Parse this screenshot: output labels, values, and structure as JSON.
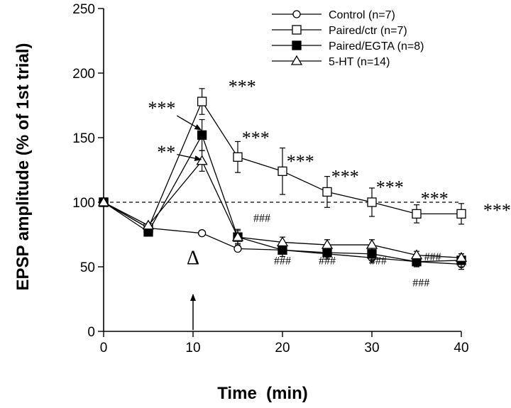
{
  "chart_data": {
    "type": "line",
    "title": "",
    "xlabel": "Time  (min)",
    "ylabel": "EPSP amplitude (% of 1st trial)",
    "xlim": [
      0,
      40
    ],
    "ylim": [
      0,
      250
    ],
    "xticks": [
      0,
      10,
      20,
      30,
      40
    ],
    "yticks": [
      0,
      50,
      100,
      150,
      200,
      250
    ],
    "reference_line": 100,
    "legend_position": "top-right",
    "series": [
      {
        "name": "Control (n=7)",
        "marker": "open-circle",
        "x": [
          0,
          5,
          11,
          15,
          20,
          25,
          30,
          35,
          40
        ],
        "values": [
          100,
          80,
          76,
          64,
          63,
          60,
          57,
          54,
          52
        ],
        "error": [
          0,
          0,
          0,
          0,
          3,
          4,
          4,
          3,
          4
        ]
      },
      {
        "name": "Paired/ctr (n=7)",
        "marker": "open-square",
        "x": [
          0,
          5,
          11,
          15,
          20,
          25,
          30,
          35,
          40
        ],
        "values": [
          100,
          80,
          178,
          135,
          124,
          108,
          100,
          91,
          91
        ],
        "error": [
          0,
          0,
          10,
          12,
          18,
          12,
          11,
          7,
          8
        ]
      },
      {
        "name": "Paired/EGTA (n=8)",
        "marker": "filled-square",
        "x": [
          0,
          5,
          11,
          15,
          20,
          25,
          30,
          35,
          40
        ],
        "values": [
          100,
          77,
          152,
          73,
          63,
          61,
          60,
          54,
          55
        ],
        "error": [
          0,
          0,
          12,
          6,
          5,
          5,
          5,
          4,
          5
        ]
      },
      {
        "name": "5-HT (n=14)",
        "marker": "open-triangle",
        "x": [
          0,
          5,
          11,
          15,
          20,
          25,
          30,
          35,
          40
        ],
        "values": [
          100,
          82,
          132,
          73,
          69,
          67,
          67,
          59,
          57
        ],
        "error": [
          0,
          0,
          8,
          5,
          4,
          4,
          4,
          3,
          3
        ]
      }
    ],
    "annotations": [
      {
        "text": "***",
        "x": 15.5,
        "y": 185,
        "kind": "star"
      },
      {
        "text": "***",
        "x": 17,
        "y": 145,
        "kind": "star"
      },
      {
        "text": "***",
        "x": 22,
        "y": 127,
        "kind": "star"
      },
      {
        "text": "***",
        "x": 27,
        "y": 115,
        "kind": "star"
      },
      {
        "text": "***",
        "x": 32,
        "y": 107,
        "kind": "star"
      },
      {
        "text": "***",
        "x": 37,
        "y": 98,
        "kind": "star"
      },
      {
        "text": "***",
        "x": 44,
        "y": 89,
        "kind": "star"
      },
      {
        "text": "***",
        "x": 6.5,
        "y": 168,
        "kind": "star"
      },
      {
        "text": "**",
        "x": 7,
        "y": 134,
        "kind": "star"
      },
      {
        "text": "###",
        "x": 17.7,
        "y": 85,
        "kind": "hash"
      },
      {
        "text": "###",
        "x": 20,
        "y": 52,
        "kind": "hash"
      },
      {
        "text": "###",
        "x": 25,
        "y": 52,
        "kind": "hash"
      },
      {
        "text": "###",
        "x": 30.7,
        "y": 52,
        "kind": "hash"
      },
      {
        "text": "###",
        "x": 36.8,
        "y": 55,
        "kind": "hash"
      },
      {
        "text": "###",
        "x": 35.5,
        "y": 35,
        "kind": "hash"
      },
      {
        "text": "Δ",
        "x": 10,
        "y": 52,
        "kind": "delta"
      }
    ],
    "pointer_arrows": [
      {
        "from": [
          8.2,
          167
        ],
        "to": [
          10.9,
          156
        ]
      },
      {
        "from": [
          8.2,
          137
        ],
        "to": [
          10.9,
          133
        ]
      }
    ],
    "stimulus_arrow_x": 10
  }
}
